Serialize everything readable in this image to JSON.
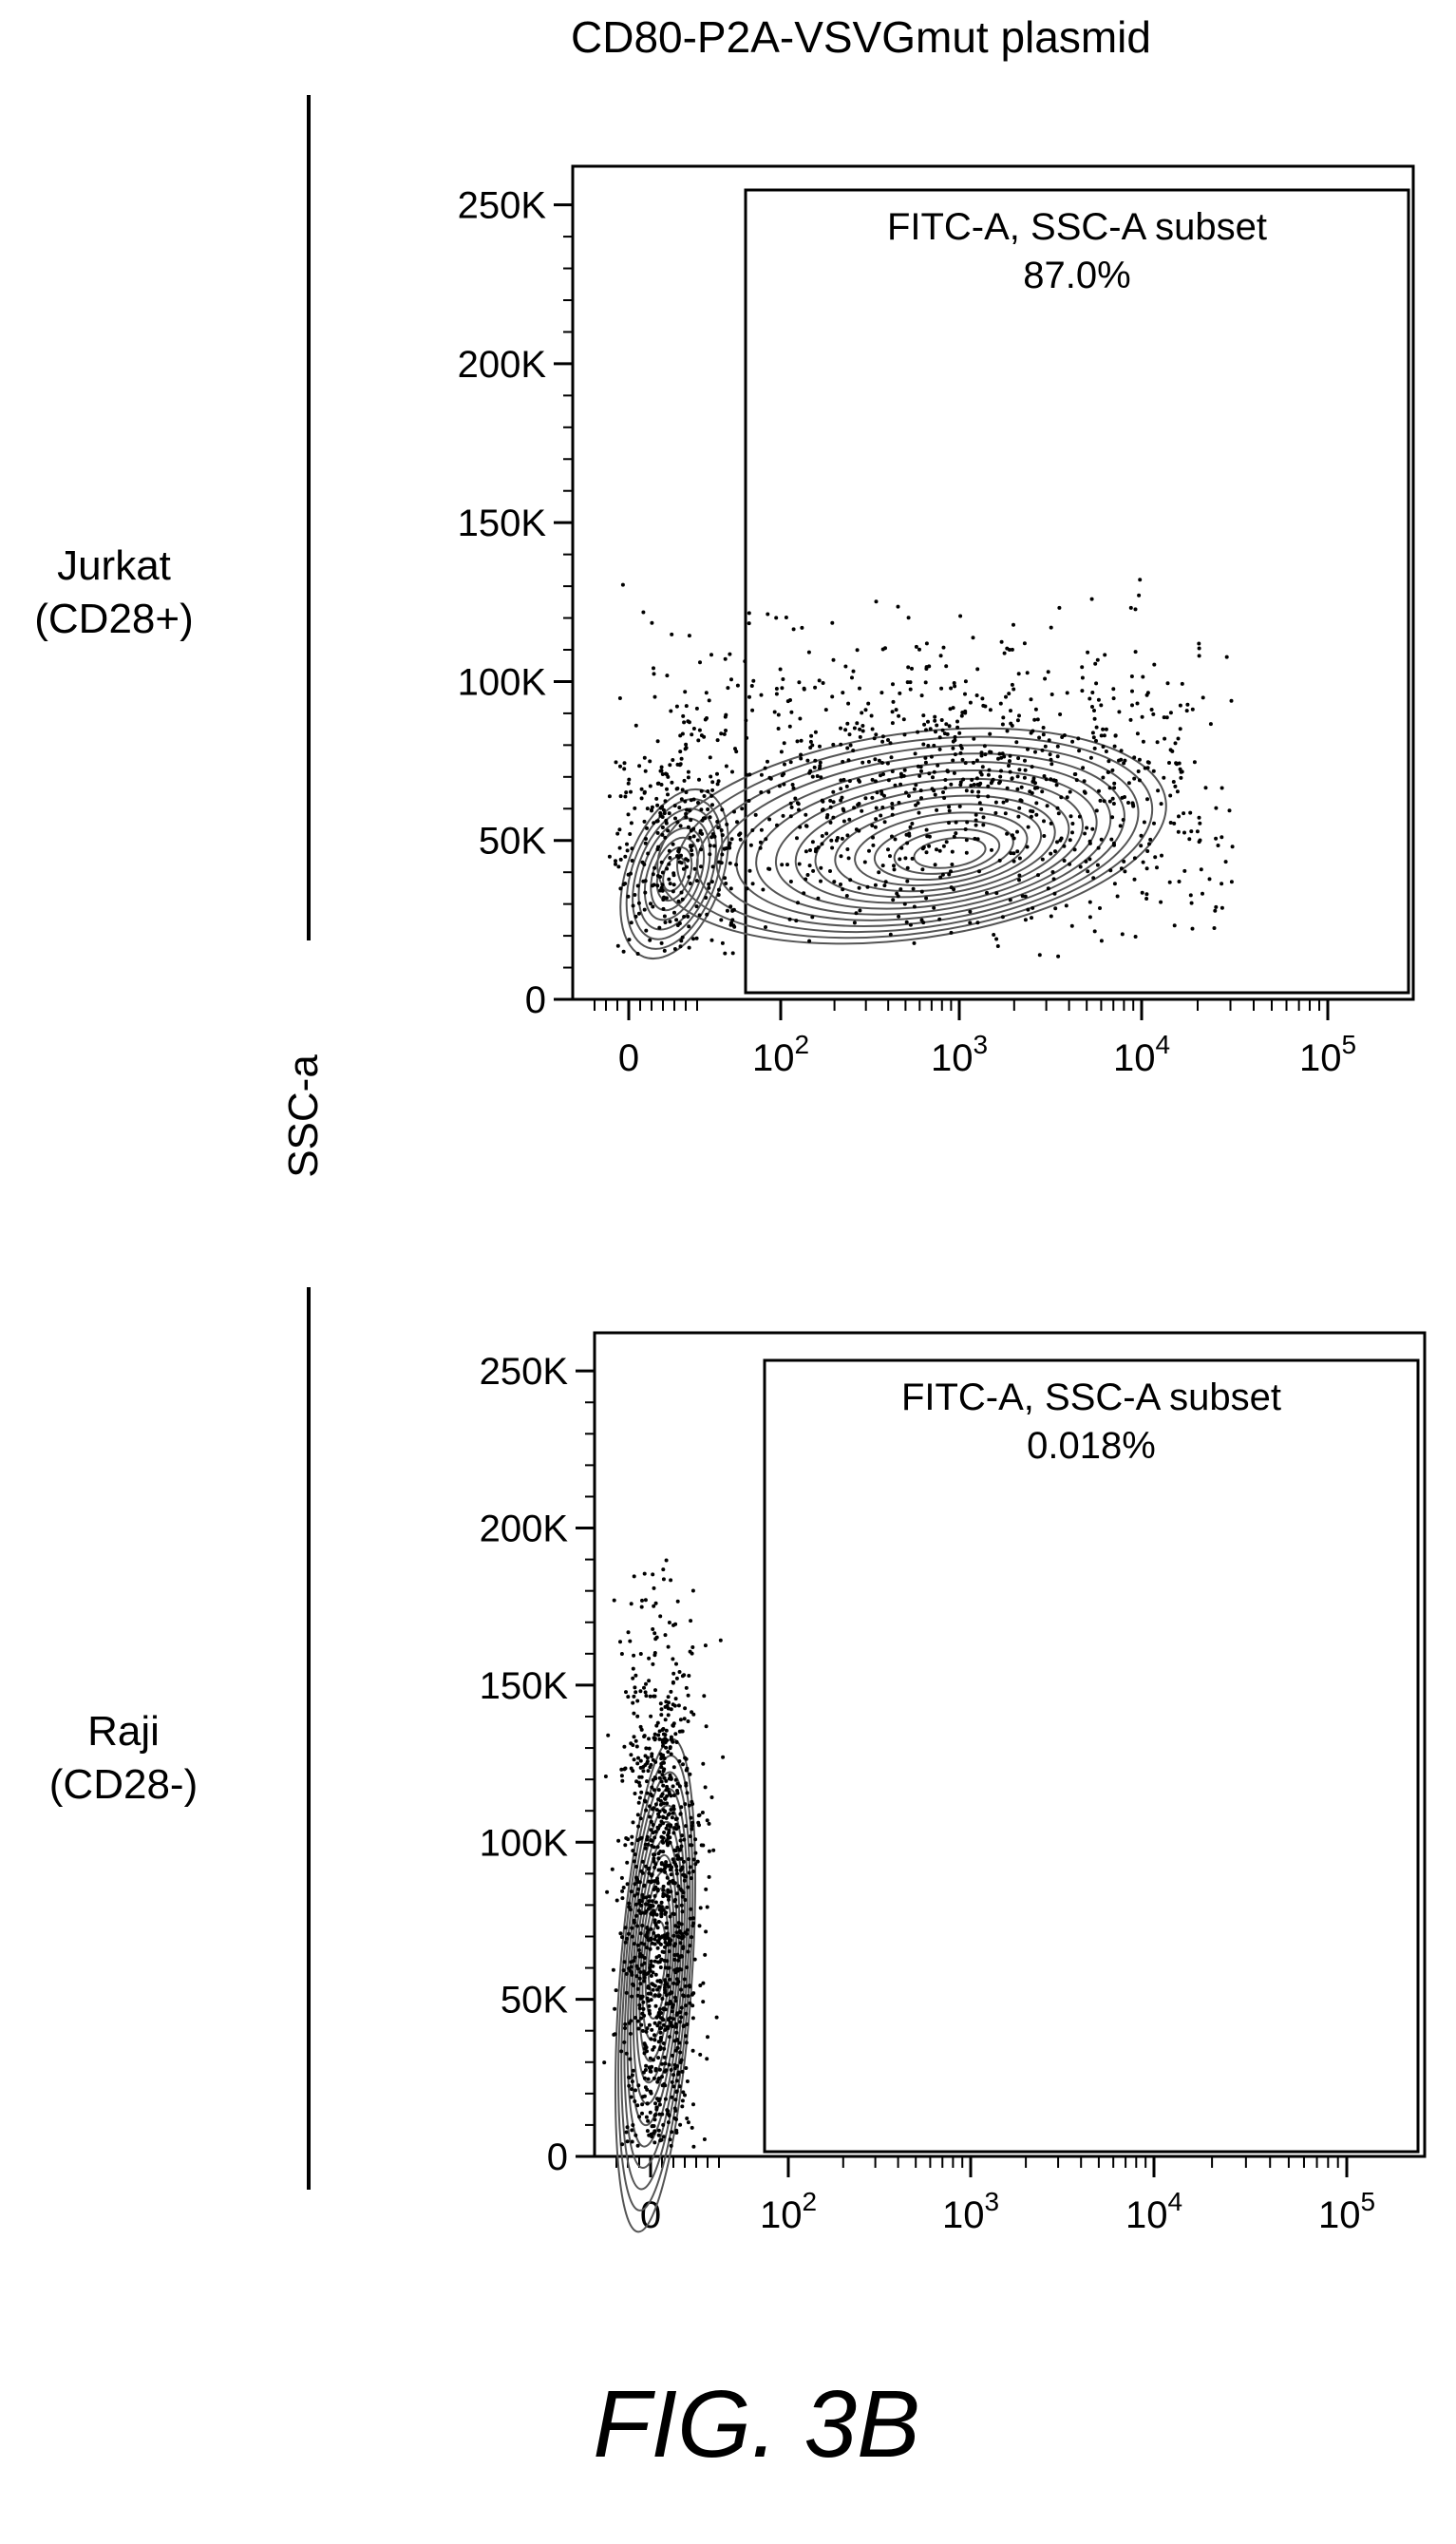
{
  "title": "CD80-P2A-VSVGmut plasmid",
  "y_axis_label": "SSC-a",
  "figure_label": "FIG. 3B",
  "chart_data": [
    {
      "type": "scatter",
      "row_label": [
        "Jurkat",
        "(CD28+)"
      ],
      "y_ticks": [
        "0",
        "50K",
        "100K",
        "150K",
        "200K",
        "250K"
      ],
      "y_tick_values": [
        0,
        50000,
        100000,
        150000,
        200000,
        250000
      ],
      "x_ticks": [
        {
          "base": "0",
          "exp": ""
        },
        {
          "base": "10",
          "exp": "2"
        },
        {
          "base": "10",
          "exp": "3"
        },
        {
          "base": "10",
          "exp": "4"
        },
        {
          "base": "10",
          "exp": "5"
        }
      ],
      "ylim": [
        0,
        262144
      ],
      "gate": {
        "name": "FITC-A, SSC-A subset",
        "percent": "87.0%"
      }
    },
    {
      "type": "scatter",
      "row_label": [
        "Raji",
        "(CD28-)"
      ],
      "y_ticks": [
        "0",
        "50K",
        "100K",
        "150K",
        "200K",
        "250K"
      ],
      "y_tick_values": [
        0,
        50000,
        100000,
        150000,
        200000,
        250000
      ],
      "x_ticks": [
        {
          "base": "0",
          "exp": ""
        },
        {
          "base": "10",
          "exp": "2"
        },
        {
          "base": "10",
          "exp": "3"
        },
        {
          "base": "10",
          "exp": "4"
        },
        {
          "base": "10",
          "exp": "5"
        }
      ],
      "ylim": [
        0,
        262144
      ],
      "gate": {
        "name": "FITC-A, SSC-A subset",
        "percent": "0.018%"
      }
    }
  ]
}
